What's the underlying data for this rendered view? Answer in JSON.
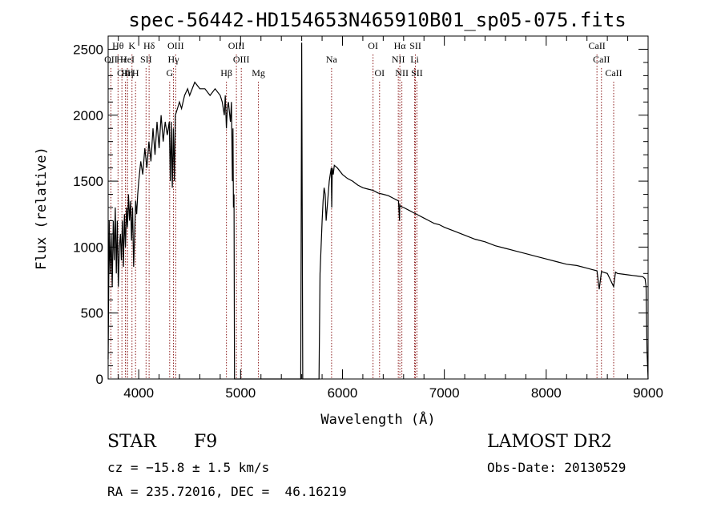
{
  "chart_data": {
    "type": "line",
    "title": "spec-56442-HD154653N465910B01_sp05-075.fits",
    "xlabel": "Wavelength (Å)",
    "ylabel": "Flux (relative)",
    "xlim": [
      3700,
      9000
    ],
    "ylim": [
      0,
      2600
    ],
    "xticks": [
      4000,
      5000,
      6000,
      7000,
      8000,
      9000
    ],
    "yticks": [
      0,
      500,
      1000,
      1500,
      2000,
      2500
    ],
    "grid": false,
    "colors": {
      "spectrum": "#000000",
      "line_markers": "#8b1a1a"
    },
    "series": [
      {
        "x": [
          3700,
          3710,
          3720,
          3730,
          3740,
          3750,
          3760,
          3770,
          3780,
          3790,
          3800,
          3810,
          3820,
          3830,
          3840,
          3850,
          3860,
          3870,
          3880,
          3890,
          3900,
          3910,
          3920,
          3930,
          3940,
          3950,
          3960,
          3970,
          3980,
          3990,
          4000,
          4020,
          4040,
          4060,
          4080,
          4100,
          4120,
          4140,
          4160,
          4180,
          4200,
          4220,
          4240,
          4260,
          4280,
          4300,
          4310,
          4320,
          4330,
          4340,
          4350,
          4360,
          4380,
          4400,
          4420,
          4450,
          4480,
          4500,
          4550,
          4600,
          4650,
          4700,
          4750,
          4800,
          4820,
          4840,
          4850,
          4861,
          4870,
          4880,
          4900,
          4910,
          4920,
          4925,
          4930,
          4935,
          4940,
          4950,
          4960,
          4970,
          5000,
          5050,
          5100,
          5200,
          5300,
          5400,
          5500,
          5590,
          5600,
          5610,
          5620,
          5630,
          5640,
          5700,
          5750,
          5760,
          5770,
          5780,
          5790,
          5800,
          5810,
          5820,
          5830,
          5840,
          5850,
          5860,
          5870,
          5880,
          5890,
          5895,
          5900,
          5910,
          5920,
          5950,
          6000,
          6050,
          6100,
          6150,
          6200,
          6250,
          6300,
          6350,
          6400,
          6450,
          6500,
          6550,
          6560,
          6563,
          6570,
          6600,
          6650,
          6700,
          6750,
          6800,
          6850,
          6900,
          6950,
          7000,
          7100,
          7200,
          7300,
          7400,
          7500,
          7600,
          7700,
          7800,
          7900,
          8000,
          8100,
          8200,
          8300,
          8400,
          8450,
          8498,
          8520,
          8542,
          8560,
          8600,
          8662,
          8680,
          8700,
          8750,
          8800,
          8850,
          8900,
          8950,
          8970,
          8980,
          8990,
          9000
        ],
        "y": [
          150,
          1200,
          800,
          1100,
          700,
          1200,
          900,
          1300,
          800,
          1200,
          700,
          1000,
          1100,
          900,
          1200,
          850,
          1250,
          1000,
          1300,
          1150,
          1400,
          1200,
          1350,
          1050,
          1300,
          850,
          1100,
          1350,
          1250,
          1400,
          1500,
          1650,
          1550,
          1750,
          1600,
          1800,
          1650,
          1900,
          1700,
          1950,
          1750,
          2000,
          1800,
          1950,
          1850,
          1950,
          1500,
          1950,
          1450,
          1900,
          1500,
          2000,
          2050,
          2100,
          2050,
          2150,
          2200,
          2150,
          2250,
          2200,
          2200,
          2150,
          2200,
          2150,
          2100,
          2000,
          2150,
          1900,
          2050,
          2100,
          1950,
          2100,
          1500,
          1900,
          1300,
          1400,
          0,
          0,
          0,
          0,
          0,
          0,
          0,
          0,
          0,
          0,
          0,
          0,
          2550,
          0,
          0,
          0,
          0,
          0,
          0,
          0,
          0,
          800,
          1000,
          1200,
          1350,
          1450,
          1400,
          1200,
          1300,
          1400,
          1500,
          1550,
          1600,
          1300,
          1600,
          1550,
          1620,
          1600,
          1550,
          1520,
          1500,
          1470,
          1450,
          1440,
          1430,
          1410,
          1400,
          1390,
          1370,
          1350,
          1200,
          1320,
          1310,
          1300,
          1280,
          1260,
          1240,
          1220,
          1200,
          1180,
          1170,
          1150,
          1120,
          1090,
          1060,
          1040,
          1010,
          990,
          970,
          950,
          930,
          910,
          890,
          870,
          860,
          840,
          830,
          820,
          680,
          815,
          810,
          800,
          700,
          810,
          800,
          795,
          790,
          785,
          780,
          775,
          760,
          700,
          200,
          0
        ]
      }
    ],
    "annotations": [
      {
        "label": "Hθ",
        "x": 3797,
        "row": 1
      },
      {
        "label": "OII",
        "x": 3727,
        "row": 2
      },
      {
        "label": "OIII",
        "x": 3869,
        "row": 3
      },
      {
        "label": "Hε",
        "x": 3835,
        "row": 2
      },
      {
        "label": "Hη",
        "x": 3889,
        "row": 3
      },
      {
        "label": "K",
        "x": 3934,
        "row": 1
      },
      {
        "label": "HeI",
        "x": 3889,
        "row": 2
      },
      {
        "label": "H",
        "x": 3969,
        "row": 3
      },
      {
        "label": "Hδ",
        "x": 4102,
        "row": 1
      },
      {
        "label": "SII",
        "x": 4072,
        "row": 2
      },
      {
        "label": "OIII",
        "x": 4363,
        "row": 1
      },
      {
        "label": "Hγ",
        "x": 4341,
        "row": 2
      },
      {
        "label": "G",
        "x": 4304,
        "row": 3
      },
      {
        "label": "Hβ",
        "x": 4861,
        "row": 3
      },
      {
        "label": "OIII",
        "x": 4959,
        "row": 1
      },
      {
        "label": "OIII",
        "x": 5007,
        "row": 2
      },
      {
        "label": "Mg",
        "x": 5175,
        "row": 3
      },
      {
        "label": "Na",
        "x": 5893,
        "row": 2
      },
      {
        "label": "OI",
        "x": 6300,
        "row": 1
      },
      {
        "label": "OI",
        "x": 6364,
        "row": 3
      },
      {
        "label": "Hα",
        "x": 6563,
        "row": 1
      },
      {
        "label": "SII",
        "x": 6716,
        "row": 1
      },
      {
        "label": "NII",
        "x": 6548,
        "row": 2
      },
      {
        "label": "Li",
        "x": 6708,
        "row": 2
      },
      {
        "label": "NII",
        "x": 6583,
        "row": 3
      },
      {
        "label": "SII",
        "x": 6731,
        "row": 3
      },
      {
        "label": "CaII",
        "x": 8498,
        "row": 1
      },
      {
        "label": "CaII",
        "x": 8542,
        "row": 2
      },
      {
        "label": "CaII",
        "x": 8662,
        "row": 3
      }
    ]
  },
  "info": {
    "object_type": "STAR",
    "subclass": "F9",
    "survey": "LAMOST DR2",
    "cz": "cz = −15.8 ± 1.5 km/s",
    "obs_date": "Obs-Date: 20130529",
    "coords": "RA = 235.72016, DEC =  46.16219"
  }
}
